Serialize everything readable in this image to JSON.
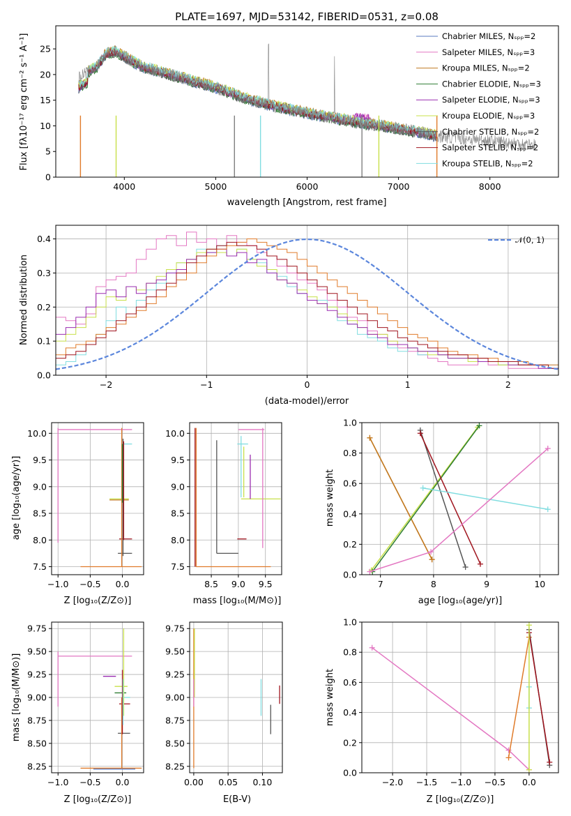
{
  "colors": {
    "chabrier_miles": "#5a7ac0",
    "salpeter_miles": "#e377c2",
    "kroupa_miles": "#c07a20",
    "chabrier_elodie": "#2e7d32",
    "salpeter_elodie": "#9a2cb0",
    "kroupa_elodie": "#c8e04a",
    "chabrier_stelib": "#555555",
    "salpeter_stelib": "#a0151f",
    "kroupa_stelib": "#80dde0",
    "data": "#808080",
    "normal": "#5b86dc",
    "orange": "#e07b2a"
  },
  "chart_data": [
    {
      "type": "line",
      "title": "PLATE=1697, MJD=53142, FIBERID=0531, z=0.08",
      "xlabel": "wavelength [Angstrom, rest frame]",
      "ylabel": "Flux [fλ10⁻¹⁷ erg cm⁻² s⁻¹ A⁻¹]",
      "xlim": [
        3250,
        8750
      ],
      "ylim": [
        0,
        29.5
      ],
      "xticks": [
        "4000",
        "5000",
        "6000",
        "7000",
        "8000"
      ],
      "yticks": [
        "0",
        "5",
        "10",
        "15",
        "20",
        "25"
      ],
      "legend_position": "top-right",
      "legend": [
        "Chabrier MILES, Nₛₚₚ=2",
        "Salpeter MILES, Nₛₚₚ=3",
        "Kroupa MILES, Nₛₚₚ=2",
        "Chabrier ELODIE, Nₛₚₚ=3",
        "Salpeter ELODIE, Nₛₚₚ=3",
        "Kroupa ELODIE, Nₛₚₚ=3",
        "Chabrier STELIB, Nₛₚₚ=2",
        "Salpeter STELIB, Nₛₚₚ=2",
        "Kroupa STELIB, Nₛₚₚ=2"
      ],
      "continuum": {
        "x": [
          3500,
          3700,
          3800,
          3900,
          4000,
          4200,
          4500,
          4800,
          5000,
          5300,
          5600,
          6000,
          6300,
          6600,
          7000,
          7300,
          7420
        ],
        "y": [
          19.5,
          21.5,
          24.0,
          24.5,
          23.5,
          21.5,
          20.0,
          18.5,
          17.5,
          15.5,
          14.0,
          12.5,
          11.5,
          10.5,
          9.5,
          8.5,
          8.0
        ]
      },
      "data_x_range": [
        3500,
        8500
      ]
    },
    {
      "type": "line",
      "xlabel": "(data-model)/error",
      "ylabel": "Normed distribution",
      "xlim": [
        -2.5,
        2.5
      ],
      "ylim": [
        0,
        0.44
      ],
      "xticks": [
        "−2",
        "−1",
        "0",
        "1",
        "2"
      ],
      "yticks": [
        "0.0",
        "0.1",
        "0.2",
        "0.3",
        "0.4"
      ],
      "legend": [
        "𝒩(0, 1)"
      ],
      "bin_edges_range": [
        -2.5,
        2.5
      ],
      "n_bins": 50,
      "series": [
        {
          "values": [
            0.17,
            0.16,
            0.15,
            0.18,
            0.26,
            0.28,
            0.29,
            0.3,
            0.34,
            0.37,
            0.4,
            0.41,
            0.38,
            0.42,
            0.39,
            0.4,
            0.37,
            0.41,
            0.39,
            0.38,
            0.36,
            0.35,
            0.32,
            0.3,
            0.28,
            0.27,
            0.25,
            0.22,
            0.2,
            0.17,
            0.16,
            0.13,
            0.12,
            0.1,
            0.08,
            0.07,
            0.06,
            0.05,
            0.04,
            0.03,
            0.03,
            0.03,
            0.04,
            0.03,
            0.03,
            0.02,
            0.02,
            0.02,
            0.02,
            0.02
          ]
        },
        {
          "values": [
            0.03,
            0.04,
            0.06,
            0.09,
            0.12,
            0.16,
            0.2,
            0.18,
            0.22,
            0.25,
            0.27,
            0.3,
            0.33,
            0.34,
            0.37,
            0.36,
            0.38,
            0.35,
            0.37,
            0.34,
            0.33,
            0.3,
            0.29,
            0.26,
            0.24,
            0.22,
            0.22,
            0.2,
            0.16,
            0.15,
            0.12,
            0.11,
            0.1,
            0.08,
            0.07,
            0.08,
            0.06,
            0.07,
            0.06,
            0.05,
            0.05,
            0.05,
            0.04,
            0.04,
            0.03,
            0.04,
            0.03,
            0.03,
            0.03,
            0.03
          ]
        },
        {
          "values": [
            0.1,
            0.12,
            0.14,
            0.17,
            0.2,
            0.23,
            0.22,
            0.26,
            0.25,
            0.27,
            0.29,
            0.31,
            0.33,
            0.34,
            0.36,
            0.37,
            0.36,
            0.35,
            0.37,
            0.34,
            0.32,
            0.31,
            0.28,
            0.27,
            0.25,
            0.23,
            0.21,
            0.2,
            0.18,
            0.16,
            0.14,
            0.12,
            0.12,
            0.1,
            0.09,
            0.08,
            0.07,
            0.06,
            0.06,
            0.05,
            0.05,
            0.04,
            0.04,
            0.04,
            0.03,
            0.03,
            0.03,
            0.03,
            0.03,
            0.02
          ]
        },
        {
          "values": [
            0.12,
            0.14,
            0.17,
            0.2,
            0.24,
            0.25,
            0.23,
            0.26,
            0.24,
            0.27,
            0.28,
            0.3,
            0.31,
            0.34,
            0.35,
            0.36,
            0.37,
            0.35,
            0.36,
            0.33,
            0.34,
            0.3,
            0.28,
            0.27,
            0.24,
            0.22,
            0.21,
            0.19,
            0.17,
            0.15,
            0.14,
            0.12,
            0.11,
            0.09,
            0.09,
            0.08,
            0.07,
            0.07,
            0.06,
            0.05,
            0.05,
            0.05,
            0.04,
            0.04,
            0.04,
            0.03,
            0.03,
            0.03,
            0.02,
            0.02
          ]
        },
        {
          "values": [
            0.06,
            0.08,
            0.09,
            0.1,
            0.12,
            0.14,
            0.15,
            0.17,
            0.19,
            0.21,
            0.23,
            0.26,
            0.28,
            0.3,
            0.33,
            0.35,
            0.37,
            0.38,
            0.39,
            0.4,
            0.39,
            0.38,
            0.37,
            0.36,
            0.34,
            0.32,
            0.3,
            0.28,
            0.26,
            0.24,
            0.22,
            0.2,
            0.18,
            0.16,
            0.14,
            0.12,
            0.11,
            0.1,
            0.08,
            0.07,
            0.06,
            0.06,
            0.05,
            0.05,
            0.04,
            0.04,
            0.04,
            0.03,
            0.03,
            0.03
          ]
        },
        {
          "values": [
            0.05,
            0.06,
            0.07,
            0.09,
            0.11,
            0.13,
            0.16,
            0.18,
            0.2,
            0.23,
            0.25,
            0.27,
            0.3,
            0.33,
            0.35,
            0.37,
            0.38,
            0.39,
            0.38,
            0.38,
            0.37,
            0.35,
            0.34,
            0.32,
            0.3,
            0.28,
            0.26,
            0.24,
            0.22,
            0.2,
            0.18,
            0.16,
            0.14,
            0.13,
            0.11,
            0.1,
            0.09,
            0.08,
            0.07,
            0.06,
            0.06,
            0.05,
            0.05,
            0.04,
            0.04,
            0.04,
            0.03,
            0.03,
            0.03,
            0.02
          ]
        }
      ],
      "normal": {
        "mu": 0,
        "sigma": 1
      }
    },
    {
      "type": "scatter",
      "xlabel": "Z [log₁₀(Z/Z⊙)]",
      "ylabel": "age  [log₁₀(age/yr)]",
      "xlim": [
        -1.1,
        0.33
      ],
      "ylim": [
        7.35,
        10.2
      ],
      "xticks": [
        "−1.0",
        "−0.5",
        "0.0"
      ],
      "yticks": [
        "7.5",
        "8.0",
        "8.5",
        "9.0",
        "9.5",
        "10.0"
      ]
    },
    {
      "type": "scatter",
      "xlabel": "mass [log₁₀(M/M⊙)]",
      "xlim": [
        8.1,
        9.8
      ],
      "ylim": [
        7.35,
        10.2
      ],
      "xticks": [
        "8.5",
        "9.0",
        "9.5"
      ],
      "yticks": [
        "7.5",
        "8.0",
        "8.5",
        "9.0",
        "9.5",
        "10.0"
      ]
    },
    {
      "type": "line",
      "xlabel": "age  [log₁₀(age/yr)]",
      "ylabel": "mass weight",
      "xlim": [
        6.65,
        10.35
      ],
      "ylim": [
        0,
        1
      ],
      "xticks": [
        "7",
        "8",
        "9",
        "10"
      ],
      "yticks": [
        "0.0",
        "0.2",
        "0.4",
        "0.6",
        "0.8",
        "1.0"
      ],
      "series": [
        {
          "x": [
            6.8,
            7.97
          ],
          "y": [
            0.9,
            0.1
          ]
        },
        {
          "x": [
            6.8,
            7.97
          ],
          "y": [
            0.9,
            0.1
          ]
        },
        {
          "x": [
            6.83,
            8.83
          ],
          "y": [
            0.03,
            0.97
          ]
        },
        {
          "x": [
            6.85,
            8.86
          ],
          "y": [
            0.02,
            0.98
          ]
        },
        {
          "x": [
            7.75,
            8.6
          ],
          "y": [
            0.95,
            0.05
          ]
        },
        {
          "x": [
            7.75,
            8.88
          ],
          "y": [
            0.93,
            0.07
          ]
        },
        {
          "x": [
            7.8,
            10.15
          ],
          "y": [
            0.57,
            0.43
          ]
        },
        {
          "x": [
            6.8,
            7.95,
            10.15
          ],
          "y": [
            0.02,
            0.15,
            0.83
          ]
        }
      ]
    },
    {
      "type": "scatter",
      "xlabel": "Z [log₁₀(Z/Z⊙)]",
      "ylabel": "mass [log₁₀(M/M⊙)]",
      "xlim": [
        -1.1,
        0.33
      ],
      "ylim": [
        8.18,
        9.82
      ],
      "xticks": [
        "−1.0",
        "−0.5",
        "0.0"
      ],
      "yticks": [
        "8.25",
        "8.50",
        "8.75",
        "9.00",
        "9.25",
        "9.50",
        "9.75"
      ]
    },
    {
      "type": "scatter",
      "xlabel": "E(B-V)",
      "xlim": [
        -0.006,
        0.129
      ],
      "ylim": [
        8.18,
        9.82
      ],
      "xticks": [
        "0.00",
        "0.05",
        "0.10"
      ],
      "yticks": [
        "8.25",
        "8.50",
        "8.75",
        "9.00",
        "9.25",
        "9.50",
        "9.75"
      ]
    },
    {
      "type": "line",
      "xlabel": "Z [log₁₀(Z/Z⊙)]",
      "ylabel": "mass weight",
      "xlim": [
        -2.45,
        0.43
      ],
      "ylim": [
        0,
        1
      ],
      "xticks": [
        "−2.0",
        "−1.5",
        "−1.0",
        "−0.5",
        "0.0"
      ],
      "yticks": [
        "0.0",
        "0.2",
        "0.4",
        "0.6",
        "0.8",
        "1.0"
      ],
      "series": [
        {
          "x": [
            -2.3,
            -0.3,
            0.0
          ],
          "y": [
            0.83,
            0.15,
            0.02
          ]
        },
        {
          "x": [
            -0.3,
            0.0
          ],
          "y": [
            0.1,
            0.9
          ]
        },
        {
          "x": [
            0.0,
            0.3
          ],
          "y": [
            0.95,
            0.05
          ]
        },
        {
          "x": [
            0.0,
            0.3
          ],
          "y": [
            0.93,
            0.07
          ]
        },
        {
          "x": [
            0.0,
            0.0
          ],
          "y": [
            0.43,
            0.57
          ]
        },
        {
          "x": [
            0.0,
            0.0
          ],
          "y": [
            0.02,
            0.98
          ]
        }
      ]
    }
  ]
}
